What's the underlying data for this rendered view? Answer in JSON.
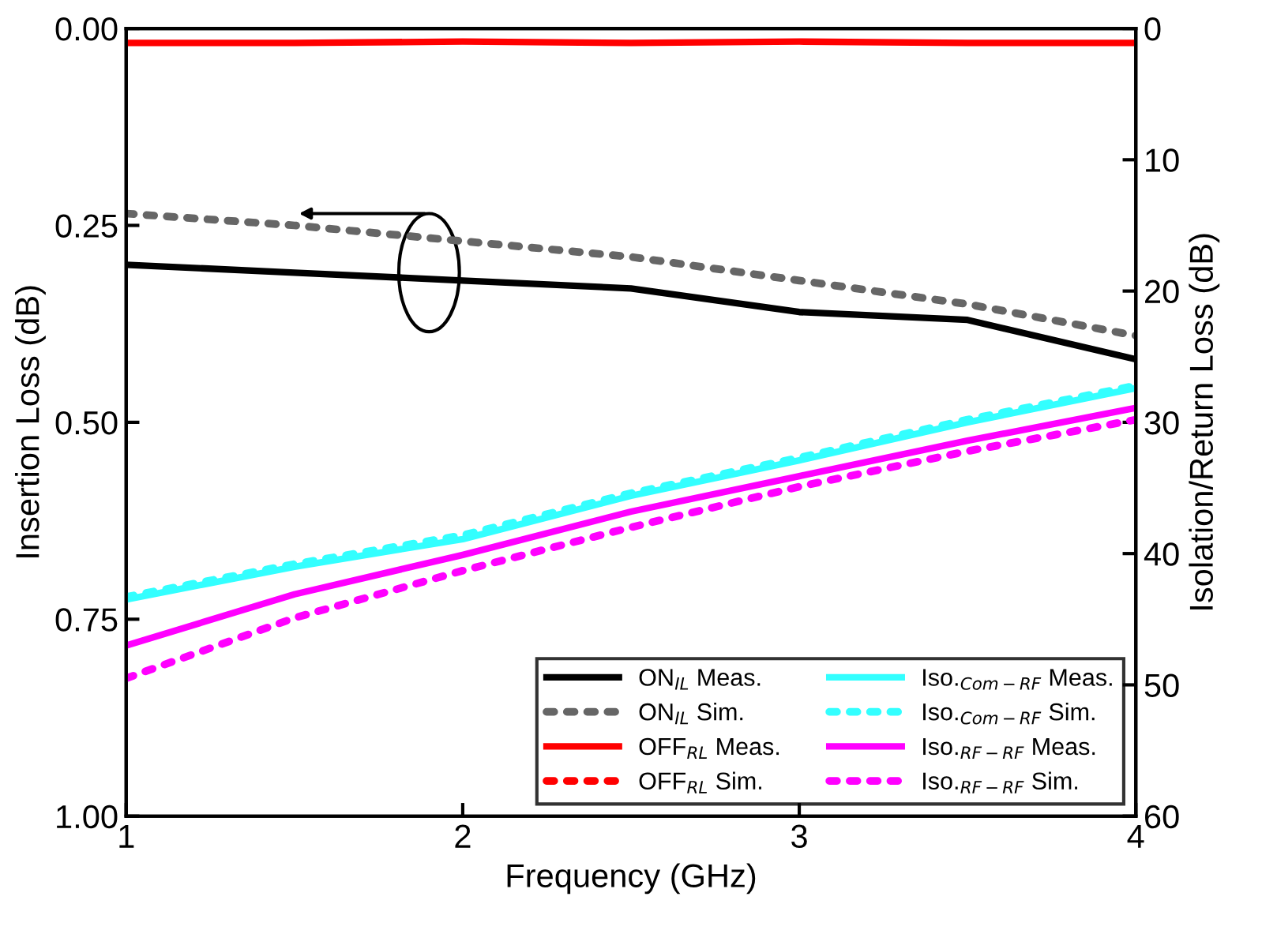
{
  "chart_data": {
    "type": "line",
    "xlabel": "Frequency (GHz)",
    "ylabel": "Insertion Loss (dB)",
    "y2label": "Isolation/Return Loss (dB)",
    "x": [
      1,
      1.5,
      2,
      2.5,
      3,
      3.5,
      4
    ],
    "xlim": [
      1,
      4
    ],
    "xticks": [
      1,
      2,
      3,
      4
    ],
    "ylim": [
      1,
      0
    ],
    "yticks": [
      {
        "value": 0,
        "label": "0.00"
      },
      {
        "value": 0.25,
        "label": "0.25"
      },
      {
        "value": 0.5,
        "label": "0.50"
      },
      {
        "value": 0.75,
        "label": "0.75"
      },
      {
        "value": 1,
        "label": "1.00"
      }
    ],
    "y2lim": [
      60,
      0
    ],
    "y2ticks": [
      0,
      10,
      20,
      30,
      40,
      50,
      60
    ],
    "grid": false,
    "legend": "bottom right",
    "marker": "none",
    "series": [
      {
        "name": "ON$_{IL}$ Meas.",
        "color": "#000000",
        "line_style": "solid",
        "values": [
          0.3,
          0.31,
          0.32,
          0.33,
          0.36,
          0.37,
          0.42
        ]
      },
      {
        "name": "ON$_{IL}$ Sim.",
        "color": "#666666",
        "line_style": "dotted",
        "values": [
          0.235,
          0.25,
          0.27,
          0.29,
          0.32,
          0.35,
          0.39
        ]
      },
      {
        "name": "OFF$_{RL}$ Meas.",
        "color": "#ff0000",
        "line_style": "solid",
        "axis": "y2",
        "values": [
          1.1,
          1.1,
          1.0,
          1.1,
          1.0,
          1.1,
          1.1
        ]
      },
      {
        "name": "OFF$_{RL}$ Sim.",
        "color": "#ff0000",
        "line_style": "dotted",
        "axis": "y2",
        "values": [
          null,
          null,
          null,
          null,
          null,
          null,
          null
        ]
      },
      {
        "name": "Iso.$_{Com−RF}$ Meas.",
        "color": "#33ffff",
        "line_style": "solid",
        "axis": "y2",
        "values": [
          43.5,
          41,
          38.9,
          35.6,
          32.9,
          30,
          27.4
        ]
      },
      {
        "name": "Iso.$_{Com−RF}$ Sim.",
        "color": "#33ffff",
        "line_style": "dotted",
        "axis": "y2",
        "values": [
          43.3,
          40.8,
          38.6,
          35.4,
          32.7,
          29.8,
          27.2
        ]
      },
      {
        "name": "Iso.$_{RF−RF}$ Meas.",
        "color": "#ff00ff",
        "line_style": "solid",
        "axis": "y2",
        "values": [
          47,
          43.1,
          40.1,
          36.8,
          34.1,
          31.4,
          28.9
        ]
      },
      {
        "name": "Iso.$_{RF−RF}$ Sim.",
        "color": "#ff00ff",
        "line_style": "dotted",
        "axis": "y2",
        "values": [
          49.5,
          44.9,
          41.3,
          38,
          34.9,
          32.2,
          29.8
        ]
      }
    ]
  }
}
